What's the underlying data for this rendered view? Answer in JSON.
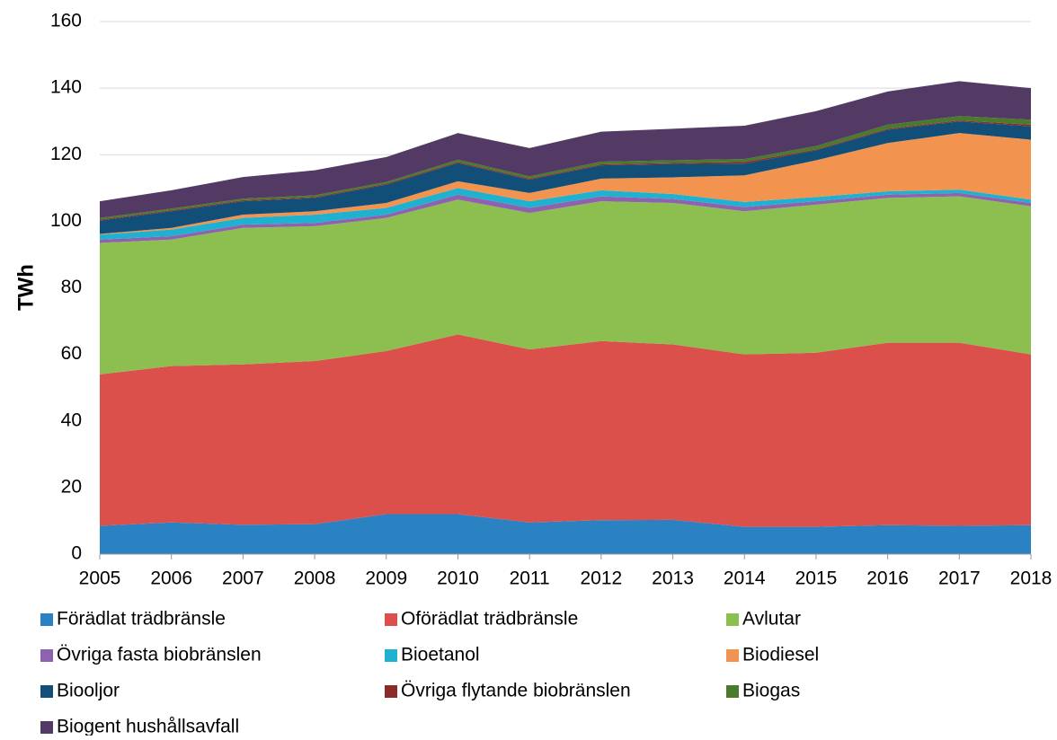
{
  "chart_data": {
    "type": "stacked_area",
    "y_label": "TWh",
    "x": [
      2005,
      2006,
      2007,
      2008,
      2009,
      2010,
      2011,
      2012,
      2013,
      2014,
      2015,
      2016,
      2017,
      2018
    ],
    "xlim": [
      2005,
      2018
    ],
    "ylim": [
      0,
      160
    ],
    "yticks": [
      0,
      20,
      40,
      60,
      80,
      100,
      120,
      140,
      160
    ],
    "grid": true,
    "series": [
      {
        "name": "Förädlat trädbränsle",
        "color": "#2b82c3",
        "values": [
          8.5,
          9.5,
          8.8,
          9,
          12,
          12,
          9.5,
          10.2,
          10.3,
          8.2,
          8.2,
          8.7,
          8.5,
          8.7
        ]
      },
      {
        "name": "Oförädlat trädbränsle",
        "color": "#dc504c",
        "values": [
          45.5,
          47,
          48.2,
          49,
          49,
          54,
          52,
          53.8,
          52.7,
          51.8,
          52.3,
          54.8,
          55,
          51.3
        ]
      },
      {
        "name": "Avlutar",
        "color": "#8cbf50",
        "values": [
          39.5,
          38,
          41,
          40.5,
          40,
          40.5,
          41,
          42,
          42.5,
          43,
          44.5,
          43.5,
          44,
          44.5
        ]
      },
      {
        "name": "Övriga fasta biobränslen",
        "color": "#8e62ae",
        "values": [
          1,
          1,
          1,
          1,
          1,
          1.5,
          1.5,
          1.5,
          1.2,
          1.3,
          1,
          1,
          1,
          1
        ]
      },
      {
        "name": "Bioetanol",
        "color": "#1fb1d0",
        "values": [
          1.5,
          2,
          2,
          2.5,
          2,
          2,
          2,
          1.8,
          1.5,
          1.5,
          1.3,
          1,
          1,
          1
        ]
      },
      {
        "name": "Biodiesel",
        "color": "#f39350",
        "values": [
          0.2,
          0.5,
          1,
          1,
          1.5,
          2,
          2.5,
          3.5,
          5,
          8,
          11,
          14.5,
          17,
          18
        ]
      },
      {
        "name": "Biooljor",
        "color": "#114f78",
        "values": [
          4,
          5,
          4,
          4,
          5.5,
          5.5,
          4,
          4,
          4,
          3.5,
          3,
          4,
          3.5,
          4
        ]
      },
      {
        "name": "Övriga flytande biobränslen",
        "color": "#8a2a2a",
        "values": [
          0.3,
          0.3,
          0.3,
          0.3,
          0.3,
          0.3,
          0.3,
          0.3,
          0.3,
          0.5,
          0.3,
          0.3,
          0.3,
          0.5
        ]
      },
      {
        "name": "Biogas",
        "color": "#4a7a2c",
        "values": [
          0.5,
          0.5,
          0.5,
          0.5,
          0.5,
          0.7,
          0.7,
          0.8,
          0.8,
          0.9,
          1,
          1.2,
          1.3,
          1.5
        ]
      },
      {
        "name": "Biogent hushållsavfall",
        "color": "#533a64",
        "values": [
          5,
          5.5,
          6.5,
          7.5,
          7.5,
          8,
          8.5,
          9,
          9.5,
          10,
          10.5,
          10,
          10.5,
          9.5
        ]
      }
    ]
  }
}
